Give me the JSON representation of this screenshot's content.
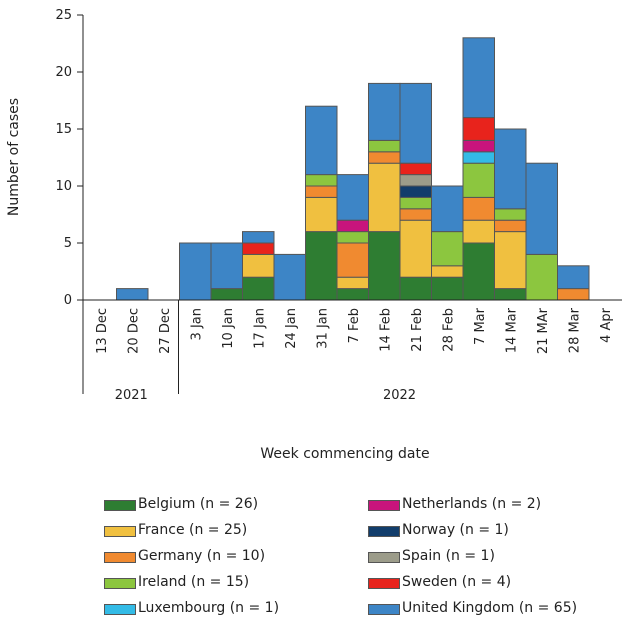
{
  "chart_data": {
    "type": "bar",
    "stacked": true,
    "xlabel": "Week commencing date",
    "ylabel": "Number of cases",
    "ylim": [
      0,
      25
    ],
    "yticks": [
      0,
      5,
      10,
      15,
      20,
      25
    ],
    "categories": [
      "13 Dec",
      "20 Dec",
      "27 Dec",
      "3 Jan",
      "10 Jan",
      "17 Jan",
      "24 Jan",
      "31 Jan",
      "7 Feb",
      "14 Feb",
      "21 Feb",
      "28 Feb",
      "7 Mar",
      "14 Mar",
      "21 MAr",
      "28 Mar",
      "4 Apr"
    ],
    "years": [
      {
        "label": "2021",
        "first": 0,
        "last": 2
      },
      {
        "label": "2022",
        "first": 3,
        "last": 16
      }
    ],
    "series": [
      {
        "name": "Belgium (n = 26)",
        "color": "#2e7d32",
        "values": [
          0,
          0,
          0,
          0,
          1,
          2,
          0,
          6,
          1,
          6,
          2,
          2,
          5,
          1,
          0,
          0,
          0
        ]
      },
      {
        "name": "France (n = 25)",
        "color": "#f0c040",
        "values": [
          0,
          0,
          0,
          0,
          0,
          2,
          0,
          3,
          1,
          6,
          5,
          1,
          2,
          5,
          0,
          0,
          0
        ]
      },
      {
        "name": "Germany (n = 10)",
        "color": "#f08a30",
        "values": [
          0,
          0,
          0,
          0,
          0,
          0,
          0,
          1,
          3,
          1,
          1,
          0,
          2,
          1,
          0,
          1,
          0
        ]
      },
      {
        "name": "Ireland (n = 15)",
        "color": "#8cc63f",
        "values": [
          0,
          0,
          0,
          0,
          0,
          0,
          0,
          1,
          1,
          1,
          1,
          3,
          3,
          1,
          4,
          0,
          0
        ]
      },
      {
        "name": "Luxembourg (n = 1)",
        "color": "#33bbe6",
        "values": [
          0,
          0,
          0,
          0,
          0,
          0,
          0,
          0,
          0,
          0,
          0,
          0,
          1,
          0,
          0,
          0,
          0
        ]
      },
      {
        "name": "Netherlands (n = 2)",
        "color": "#c8147c",
        "values": [
          0,
          0,
          0,
          0,
          0,
          0,
          0,
          0,
          1,
          0,
          0,
          0,
          1,
          0,
          0,
          0,
          0
        ]
      },
      {
        "name": "Norway (n = 1)",
        "color": "#123d6b",
        "values": [
          0,
          0,
          0,
          0,
          0,
          0,
          0,
          0,
          0,
          0,
          1,
          0,
          0,
          0,
          0,
          0,
          0
        ]
      },
      {
        "name": "Spain (n = 1)",
        "color": "#9c9c8a",
        "values": [
          0,
          0,
          0,
          0,
          0,
          0,
          0,
          0,
          0,
          0,
          1,
          0,
          0,
          0,
          0,
          0,
          0
        ]
      },
      {
        "name": "Sweden (n = 4)",
        "color": "#e8231c",
        "values": [
          0,
          0,
          0,
          0,
          0,
          1,
          0,
          0,
          0,
          0,
          1,
          0,
          2,
          0,
          0,
          0,
          0
        ]
      },
      {
        "name": "United Kingdom (n = 65)",
        "color": "#3d85c6",
        "values": [
          0,
          1,
          0,
          5,
          4,
          1,
          4,
          6,
          4,
          5,
          7,
          4,
          7,
          7,
          8,
          2,
          0
        ]
      }
    ],
    "legend_placement": "bottom",
    "grid": false
  }
}
